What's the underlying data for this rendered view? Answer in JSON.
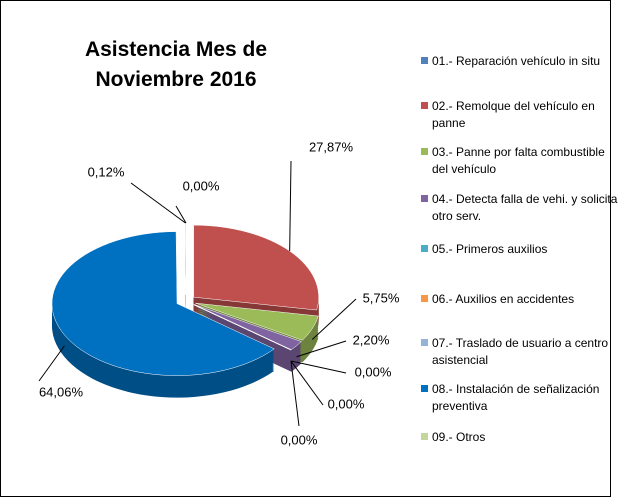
{
  "chart_data": {
    "type": "pie",
    "title": "Asistencia Mes de Noviembre 2016",
    "categories": [
      "01.- Reparación vehículo in situ",
      "02.- Remolque del vehículo en panne",
      "03.- Panne por falta combustible del vehículo",
      "04.- Detecta falla de vehi. y solicita otro serv.",
      "05.- Primeros auxilios",
      "06.- Auxilios en accidentes",
      "07.- Traslado de usuario a centro asistencial",
      "08.- Instalación de señalización preventiva",
      "09.- Otros"
    ],
    "values": [
      0,
      27.87,
      5.75,
      2.2,
      0,
      0,
      0,
      64.06,
      0.12
    ],
    "value_labels": [
      "0,00%",
      "27,87%",
      "5,75%",
      "2,20%",
      "0,00%",
      "0,00%",
      "0,00%",
      "64,06%",
      "0,12%"
    ],
    "colors": [
      "#4f81bd",
      "#c0504d",
      "#9bbb59",
      "#8064a2",
      "#4bacc6",
      "#f79646",
      "#95b3d7",
      "#0070c0",
      "#c3d69b"
    ],
    "legend": "right"
  }
}
